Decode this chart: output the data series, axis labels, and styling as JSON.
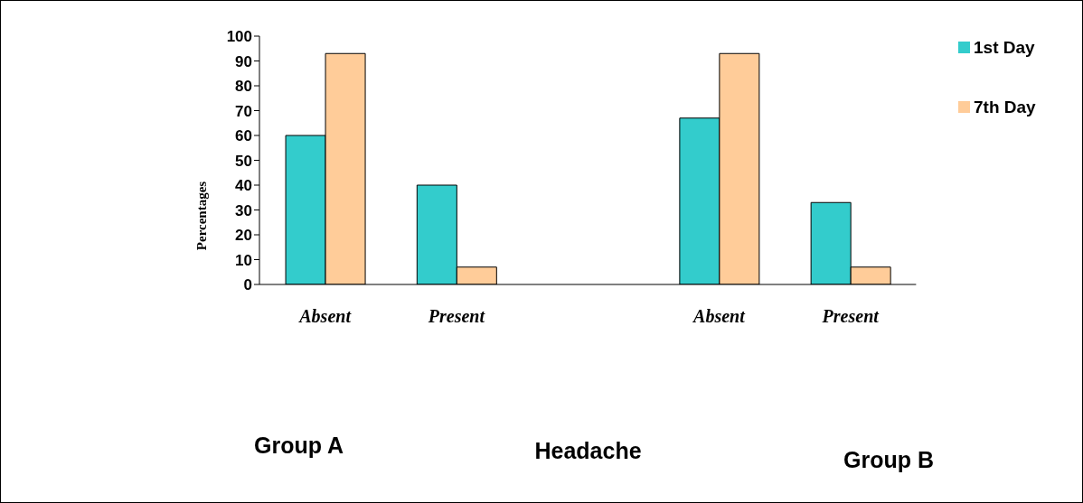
{
  "chart_data": {
    "type": "bar",
    "categories": [
      "Absent",
      "Present",
      null,
      "Absent",
      "Present"
    ],
    "series": [
      {
        "name": "1st Day",
        "color": "#33cccc",
        "values": [
          60,
          40,
          null,
          67,
          33
        ]
      },
      {
        "name": "7th Day",
        "color": "#ffcc99",
        "values": [
          93,
          7,
          null,
          93,
          7
        ]
      }
    ],
    "xlabel": "Headache",
    "ylabel": "Percentages",
    "annotations": [
      "Group A",
      "Group B"
    ],
    "ylim": [
      0,
      100
    ],
    "yticks": [
      0,
      10,
      20,
      30,
      40,
      50,
      60,
      70,
      80,
      90,
      100
    ],
    "legend": "top right"
  }
}
